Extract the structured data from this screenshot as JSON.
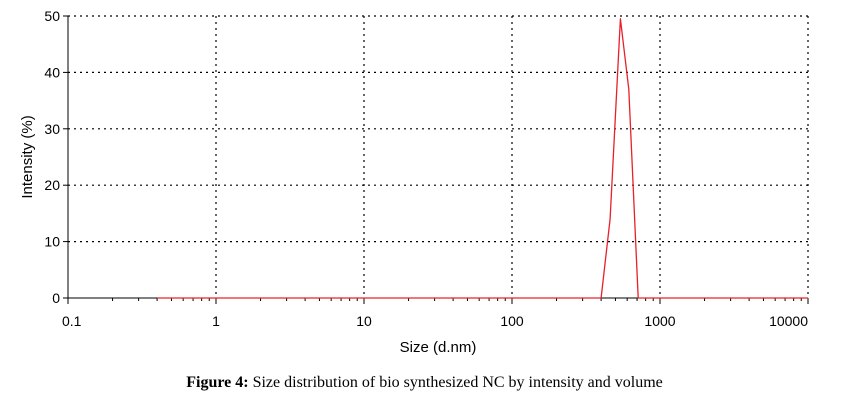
{
  "chart_data": {
    "type": "line",
    "xscale": "log",
    "xlim": [
      0.1,
      10000
    ],
    "ylim": [
      0,
      50
    ],
    "xlabel": "Size (d.nm)",
    "ylabel": "Intensity (%)",
    "xticks": [
      {
        "value": 0.1,
        "label": "0.1"
      },
      {
        "value": 1,
        "label": "1"
      },
      {
        "value": 10,
        "label": "10"
      },
      {
        "value": 100,
        "label": "100"
      },
      {
        "value": 1000,
        "label": "1000"
      },
      {
        "value": 10000,
        "label": "10000"
      }
    ],
    "yticks": [
      {
        "value": 0,
        "label": "0"
      },
      {
        "value": 10,
        "label": "10"
      },
      {
        "value": 20,
        "label": "20"
      },
      {
        "value": 30,
        "label": "30"
      },
      {
        "value": 40,
        "label": "40"
      },
      {
        "value": 50,
        "label": "50"
      }
    ],
    "grid": true,
    "series": [
      {
        "color": "#e8202a",
        "x": [
          0.4,
          1,
          10,
          100,
          400,
          460,
          540,
          615,
          712,
          800,
          2000,
          10000
        ],
        "y": [
          0,
          0,
          0,
          0,
          0,
          14,
          49.5,
          37,
          0,
          0,
          0,
          0
        ]
      }
    ]
  },
  "caption": {
    "label": "Figure 4:",
    "text": " Size distribution of bio synthesized NC by intensity and volume"
  }
}
